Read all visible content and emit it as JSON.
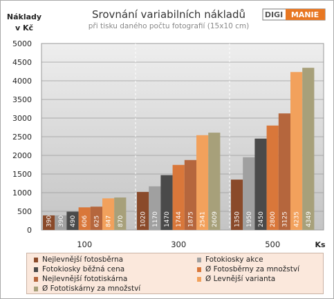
{
  "logo": {
    "left": "DIGI",
    "right": "MANIE"
  },
  "chart_data": {
    "type": "bar",
    "title": "Srovnání variabilních nákladů",
    "subtitle": "při tisku daného počtu fotografií (15x10 cm)",
    "ylabel_line1": "Náklady",
    "ylabel_line2": "v Kč",
    "xlabel": "Ks",
    "categories": [
      "100",
      "300",
      "500"
    ],
    "ylim": [
      0,
      5000
    ],
    "yticks": [
      "0",
      "500",
      "1000",
      "1500",
      "2000",
      "2500",
      "3000",
      "3500",
      "4000",
      "4500",
      "5000"
    ],
    "grid": true,
    "legend_position": "bottom",
    "series": [
      {
        "name": "Nejlevnější fotosběrna",
        "values": [
          390,
          1020,
          1350
        ],
        "color": "#8a4a2a"
      },
      {
        "name": "Fotokiosky akce",
        "values": [
          390,
          1170,
          1950
        ],
        "color": "#a0a0a0"
      },
      {
        "name": "Fotokiosky běžná cena",
        "values": [
          490,
          1470,
          2450
        ],
        "color": "#4a4a4a"
      },
      {
        "name": "Ø Fotosběrny za množství",
        "values": [
          606,
          1744,
          2800
        ],
        "color": "#d9773a"
      },
      {
        "name": "Nejlevnější fototiskárna",
        "values": [
          625,
          1875,
          3125
        ],
        "color": "#b5663d"
      },
      {
        "name": "Ø Levnější varianta",
        "values": [
          847,
          2541,
          4235
        ],
        "color": "#f2a15c"
      },
      {
        "name": "Ø Fototiskárny za množství",
        "values": [
          870,
          2609,
          4349
        ],
        "color": "#a7a07a"
      }
    ]
  }
}
